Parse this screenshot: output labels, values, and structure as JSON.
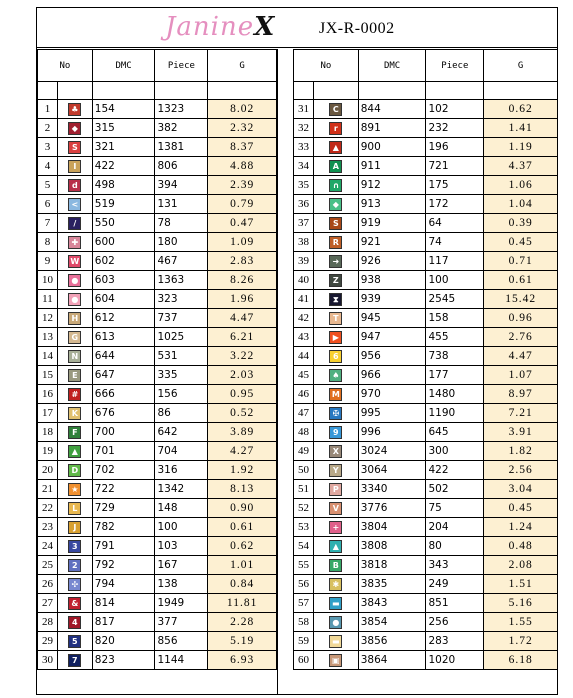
{
  "header": {
    "logo": "Janine",
    "logo_mark": "X",
    "code": "JX-R-0002"
  },
  "columns": {
    "no": "No",
    "dmc": "DMC",
    "piece": "Piece",
    "g": "G"
  },
  "left": [
    {
      "no": "1",
      "sym": "♣",
      "color": "#c0392b",
      "dmc": "154",
      "piece": "1323",
      "g": "8.02"
    },
    {
      "no": "2",
      "sym": "◆",
      "color": "#a02030",
      "dmc": "315",
      "piece": "382",
      "g": "2.32"
    },
    {
      "no": "3",
      "sym": "S",
      "color": "#d94040",
      "dmc": "321",
      "piece": "1381",
      "g": "8.37"
    },
    {
      "no": "4",
      "sym": "I",
      "color": "#c9a25a",
      "dmc": "422",
      "piece": "806",
      "g": "4.88"
    },
    {
      "no": "5",
      "sym": "d",
      "color": "#b8304a",
      "dmc": "498",
      "piece": "394",
      "g": "2.39"
    },
    {
      "no": "6",
      "sym": "<",
      "color": "#8bb8e0",
      "dmc": "519",
      "piece": "131",
      "g": "0.79"
    },
    {
      "no": "7",
      "sym": "/",
      "color": "#2a2060",
      "dmc": "550",
      "piece": "78",
      "g": "0.47"
    },
    {
      "no": "8",
      "sym": "✚",
      "color": "#d8869a",
      "dmc": "600",
      "piece": "180",
      "g": "1.09"
    },
    {
      "no": "9",
      "sym": "W",
      "color": "#e04a6a",
      "dmc": "602",
      "piece": "467",
      "g": "2.83"
    },
    {
      "no": "10",
      "sym": "●",
      "color": "#e8709a",
      "dmc": "603",
      "piece": "1363",
      "g": "8.26"
    },
    {
      "no": "11",
      "sym": "●",
      "color": "#f2a2b8",
      "dmc": "604",
      "piece": "323",
      "g": "1.96"
    },
    {
      "no": "12",
      "sym": "H",
      "color": "#c8a878",
      "dmc": "612",
      "piece": "737",
      "g": "4.47"
    },
    {
      "no": "13",
      "sym": "G",
      "color": "#d4b890",
      "dmc": "613",
      "piece": "1025",
      "g": "6.21"
    },
    {
      "no": "14",
      "sym": "N",
      "color": "#a8b098",
      "dmc": "644",
      "piece": "531",
      "g": "3.22"
    },
    {
      "no": "15",
      "sym": "E",
      "color": "#9a9a80",
      "dmc": "647",
      "piece": "335",
      "g": "2.03"
    },
    {
      "no": "16",
      "sym": "#",
      "color": "#c02020",
      "dmc": "666",
      "piece": "156",
      "g": "0.95"
    },
    {
      "no": "17",
      "sym": "K",
      "color": "#e0c070",
      "dmc": "676",
      "piece": "86",
      "g": "0.52"
    },
    {
      "no": "18",
      "sym": "F",
      "color": "#30803a",
      "dmc": "700",
      "piece": "642",
      "g": "3.89"
    },
    {
      "no": "19",
      "sym": "▲",
      "color": "#40a040",
      "dmc": "701",
      "piece": "704",
      "g": "4.27"
    },
    {
      "no": "20",
      "sym": "D",
      "color": "#60b848",
      "dmc": "702",
      "piece": "316",
      "g": "1.92"
    },
    {
      "no": "21",
      "sym": "★",
      "color": "#f09030",
      "dmc": "722",
      "piece": "1342",
      "g": "8.13"
    },
    {
      "no": "22",
      "sym": "L",
      "color": "#e8b850",
      "dmc": "729",
      "piece": "148",
      "g": "0.90"
    },
    {
      "no": "23",
      "sym": "J",
      "color": "#d8a030",
      "dmc": "782",
      "piece": "100",
      "g": "0.61"
    },
    {
      "no": "24",
      "sym": "3",
      "color": "#3848a0",
      "dmc": "791",
      "piece": "103",
      "g": "0.62"
    },
    {
      "no": "25",
      "sym": "2",
      "color": "#6070c0",
      "dmc": "792",
      "piece": "167",
      "g": "1.01"
    },
    {
      "no": "26",
      "sym": "✣",
      "color": "#7888d0",
      "dmc": "794",
      "piece": "138",
      "g": "0.84"
    },
    {
      "no": "27",
      "sym": "&",
      "color": "#c02030",
      "dmc": "814",
      "piece": "1949",
      "g": "11.81"
    },
    {
      "no": "28",
      "sym": "4",
      "color": "#a01828",
      "dmc": "817",
      "piece": "377",
      "g": "2.28"
    },
    {
      "no": "29",
      "sym": "5",
      "color": "#203080",
      "dmc": "820",
      "piece": "856",
      "g": "5.19"
    },
    {
      "no": "30",
      "sym": "7",
      "color": "#102060",
      "dmc": "823",
      "piece": "1144",
      "g": "6.93"
    }
  ],
  "right": [
    {
      "no": "31",
      "sym": "C",
      "color": "#6a5840",
      "dmc": "844",
      "piece": "102",
      "g": "0.62"
    },
    {
      "no": "32",
      "sym": "r",
      "color": "#d03018",
      "dmc": "891",
      "piece": "232",
      "g": "1.41"
    },
    {
      "no": "33",
      "sym": "▲",
      "color": "#c02818",
      "dmc": "900",
      "piece": "196",
      "g": "1.19"
    },
    {
      "no": "34",
      "sym": "A",
      "color": "#109050",
      "dmc": "911",
      "piece": "721",
      "g": "4.37"
    },
    {
      "no": "35",
      "sym": "∩",
      "color": "#20a868",
      "dmc": "912",
      "piece": "175",
      "g": "1.06"
    },
    {
      "no": "36",
      "sym": "◆",
      "color": "#48c088",
      "dmc": "913",
      "piece": "172",
      "g": "1.04"
    },
    {
      "no": "37",
      "sym": "S",
      "color": "#a84818",
      "dmc": "919",
      "piece": "64",
      "g": "0.39"
    },
    {
      "no": "38",
      "sym": "R",
      "color": "#c06028",
      "dmc": "921",
      "piece": "74",
      "g": "0.45"
    },
    {
      "no": "39",
      "sym": "➜",
      "color": "#586858",
      "dmc": "926",
      "piece": "117",
      "g": "0.71"
    },
    {
      "no": "40",
      "sym": "Z",
      "color": "#404840",
      "dmc": "938",
      "piece": "100",
      "g": "0.61"
    },
    {
      "no": "41",
      "sym": "⧗",
      "color": "#181830",
      "dmc": "939",
      "piece": "2545",
      "g": "15.42"
    },
    {
      "no": "42",
      "sym": "T",
      "color": "#e8b890",
      "dmc": "945",
      "piece": "158",
      "g": "0.96"
    },
    {
      "no": "43",
      "sym": "▶",
      "color": "#f05020",
      "dmc": "947",
      "piece": "455",
      "g": "2.76"
    },
    {
      "no": "44",
      "sym": "6",
      "color": "#f8d030",
      "dmc": "956",
      "piece": "738",
      "g": "4.47"
    },
    {
      "no": "45",
      "sym": "♠",
      "color": "#50b080",
      "dmc": "966",
      "piece": "177",
      "g": "1.07"
    },
    {
      "no": "46",
      "sym": "M",
      "color": "#e07020",
      "dmc": "970",
      "piece": "1480",
      "g": "8.97"
    },
    {
      "no": "47",
      "sym": "✠",
      "color": "#2878c0",
      "dmc": "995",
      "piece": "1190",
      "g": "7.21"
    },
    {
      "no": "48",
      "sym": "9",
      "color": "#3898d8",
      "dmc": "996",
      "piece": "645",
      "g": "3.91"
    },
    {
      "no": "49",
      "sym": "X",
      "color": "#988878",
      "dmc": "3024",
      "piece": "300",
      "g": "1.82"
    },
    {
      "no": "50",
      "sym": "Y",
      "color": "#b8a888",
      "dmc": "3064",
      "piece": "422",
      "g": "2.56"
    },
    {
      "no": "51",
      "sym": "P",
      "color": "#e0a8a0",
      "dmc": "3340",
      "piece": "502",
      "g": "3.04"
    },
    {
      "no": "52",
      "sym": "V",
      "color": "#d89070",
      "dmc": "3776",
      "piece": "75",
      "g": "0.45"
    },
    {
      "no": "53",
      "sym": "+",
      "color": "#e0608a",
      "dmc": "3804",
      "piece": "204",
      "g": "1.24"
    },
    {
      "no": "54",
      "sym": "▲",
      "color": "#30b0b0",
      "dmc": "3808",
      "piece": "80",
      "g": "0.48"
    },
    {
      "no": "55",
      "sym": "B",
      "color": "#38a868",
      "dmc": "3818",
      "piece": "343",
      "g": "2.08"
    },
    {
      "no": "56",
      "sym": "✱",
      "color": "#d8c060",
      "dmc": "3835",
      "piece": "249",
      "g": "1.51"
    },
    {
      "no": "57",
      "sym": "▬",
      "color": "#30a0c8",
      "dmc": "3843",
      "piece": "851",
      "g": "5.16"
    },
    {
      "no": "58",
      "sym": "●",
      "color": "#5898b0",
      "dmc": "3854",
      "piece": "256",
      "g": "1.55"
    },
    {
      "no": "59",
      "sym": "▬",
      "color": "#f0d898",
      "dmc": "3856",
      "piece": "283",
      "g": "1.72"
    },
    {
      "no": "60",
      "sym": "▣",
      "color": "#c89878",
      "dmc": "3864",
      "piece": "1020",
      "g": "6.18"
    }
  ]
}
